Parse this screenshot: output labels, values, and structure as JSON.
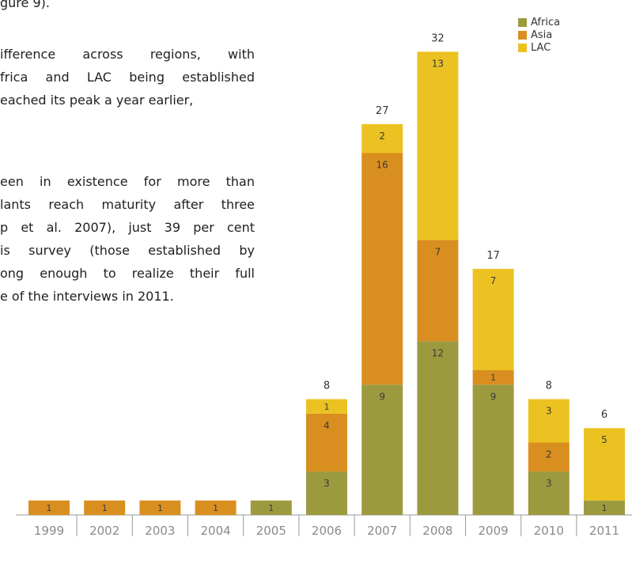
{
  "body_text": [
    "gure 9).",
    "ifference across regions, with",
    "frica and LAC being established",
    "eached its peak a year earlier,",
    "een in existence for more than",
    "lants reach maturity after three",
    "p et al. 2007), just 39 per cent",
    "is survey (those established by",
    "ong enough to realize their full",
    "e of the interviews in 2011."
  ],
  "colors": {
    "Africa": "#9c9a3f",
    "Asia": "#d98f1f",
    "LAC": "#ebc221",
    "axis": "#9a9a9a",
    "tick_text": "#8a8a8a"
  },
  "chart_data": {
    "type": "bar",
    "stacked": true,
    "categories": [
      "1999",
      "2002",
      "2003",
      "2004",
      "2005",
      "2006",
      "2007",
      "2008",
      "2009",
      "2010",
      "2011"
    ],
    "series": [
      {
        "name": "Africa",
        "values": [
          0,
          0,
          0,
          0,
          1,
          3,
          9,
          12,
          9,
          3,
          1
        ]
      },
      {
        "name": "Asia",
        "values": [
          1,
          1,
          1,
          1,
          0,
          4,
          16,
          7,
          1,
          2,
          0
        ]
      },
      {
        "name": "LAC",
        "values": [
          0,
          0,
          0,
          0,
          0,
          1,
          2,
          13,
          7,
          3,
          5
        ]
      }
    ],
    "totals": [
      "",
      "",
      "",
      "",
      "",
      "8",
      "27",
      "32",
      "17",
      "8",
      "6"
    ],
    "legend": [
      "Africa",
      "Asia",
      "LAC"
    ],
    "legend_position": "top-right",
    "ylim": [
      0,
      32
    ],
    "grid": false,
    "title": "",
    "xlabel": "",
    "ylabel": ""
  }
}
